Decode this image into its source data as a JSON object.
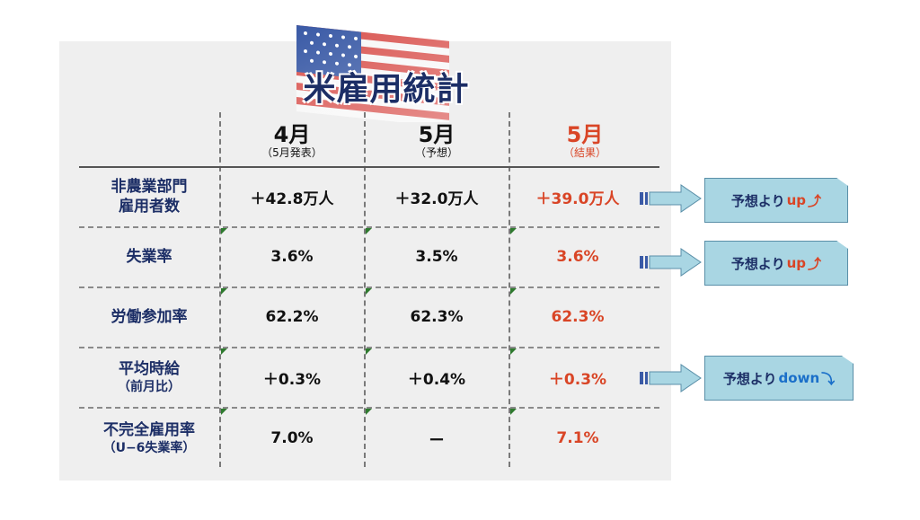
{
  "title": "米雇用統計",
  "columns": [
    {
      "main": "4月",
      "sub": "（5月発表）"
    },
    {
      "main": "5月",
      "sub": "（予想）"
    },
    {
      "main": "5月",
      "sub": "（結果）"
    }
  ],
  "rows": [
    {
      "label": "非農業部門",
      "label_sub": "雇用者数",
      "values": [
        "＋42.8万人",
        "＋32.0万人",
        "＋39.0万人"
      ]
    },
    {
      "label": "失業率",
      "label_sub": "",
      "values": [
        "3.6%",
        "3.5%",
        "3.6%"
      ]
    },
    {
      "label": "労働参加率",
      "label_sub": "",
      "values": [
        "62.2%",
        "62.3%",
        "62.3%"
      ]
    },
    {
      "label": "平均時給",
      "label_sub": "（前月比）",
      "values": [
        "＋0.3%",
        "＋0.4%",
        "＋0.3%"
      ]
    },
    {
      "label": "不完全雇用率",
      "label_sub": "（U−6失業率）",
      "values": [
        "7.0%",
        "ー",
        "7.1%"
      ]
    }
  ],
  "callouts": [
    {
      "text": "予想より",
      "dir": "up",
      "arrow": "⤴"
    },
    {
      "text": "予想より",
      "dir": "up",
      "arrow": "⤴"
    },
    {
      "text": "予想より",
      "dir": "down",
      "arrow": "⤵"
    }
  ],
  "colors": {
    "title": "#1c2e66",
    "result": "#d94526",
    "callout": "#a9d6e3",
    "up": "#d94526",
    "down": "#1a6fc9"
  }
}
